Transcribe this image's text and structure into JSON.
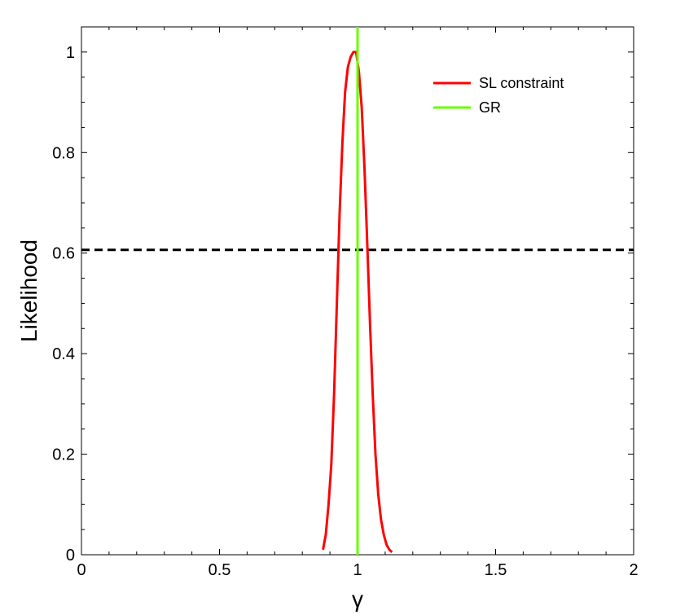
{
  "chart_data": {
    "type": "line",
    "xlabel": "γ",
    "ylabel": "Likelihood",
    "xlim": [
      0,
      2
    ],
    "ylim": [
      0,
      1.05
    ],
    "x_ticks": [
      "0",
      "0.5",
      "1",
      "1.5",
      "2"
    ],
    "y_ticks": [
      "0",
      "0.2",
      "0.4",
      "0.6",
      "0.8",
      "1"
    ],
    "grid": false,
    "legend_placement": "top-right",
    "series": [
      {
        "name": "SL constraint",
        "color": "#ff0000",
        "x": [
          0.875,
          0.885,
          0.895,
          0.905,
          0.915,
          0.925,
          0.935,
          0.945,
          0.955,
          0.965,
          0.975,
          0.985,
          0.995,
          1.005,
          1.015,
          1.025,
          1.035,
          1.045,
          1.055,
          1.065,
          1.075,
          1.085,
          1.095,
          1.105,
          1.115,
          1.125
        ],
        "y": [
          0.01,
          0.04,
          0.1,
          0.18,
          0.32,
          0.5,
          0.68,
          0.82,
          0.92,
          0.97,
          0.99,
          1.0,
          1.0,
          0.96,
          0.89,
          0.77,
          0.62,
          0.46,
          0.32,
          0.2,
          0.12,
          0.07,
          0.04,
          0.02,
          0.01,
          0.005
        ]
      },
      {
        "name": "GR",
        "color": "#66ff00",
        "x": [
          1,
          1
        ],
        "y": [
          0,
          1.05
        ]
      }
    ],
    "reference_lines": [
      {
        "orientation": "horizontal",
        "y": 0.6065,
        "color": "#000000",
        "style": "dashed"
      }
    ]
  }
}
